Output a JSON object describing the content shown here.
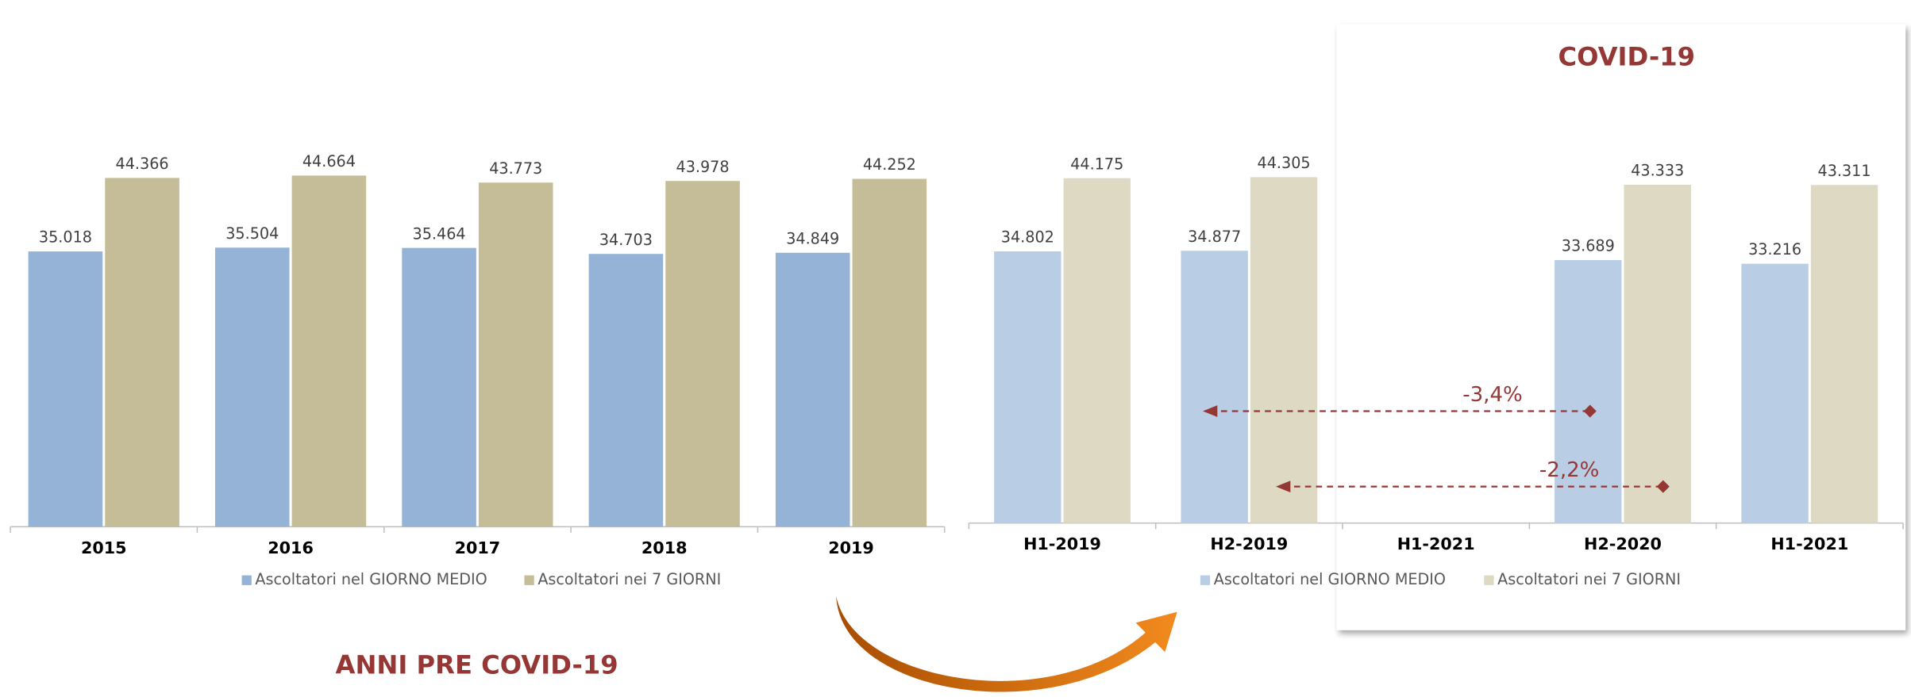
{
  "chart_data": [
    {
      "type": "bar",
      "title": "ANNI PRE COVID-19",
      "categories": [
        "2015",
        "2016",
        "2017",
        "2018",
        "2019"
      ],
      "series": [
        {
          "name": "Ascoltatori nel GIORNO MEDIO",
          "color": "#95b3d7",
          "values": [
            35.018,
            35.504,
            35.464,
            34.703,
            34.849
          ]
        },
        {
          "name": "Ascoltatori nei 7 GIORNI",
          "color": "#c4bd97",
          "values": [
            44.366,
            44.664,
            43.773,
            43.978,
            44.252
          ]
        }
      ],
      "ylim": [
        0,
        67
      ]
    },
    {
      "type": "bar",
      "title": "COVID-19",
      "categories": [
        "H1-2019",
        "H2-2019",
        "H1-2021",
        "H2-2020",
        "H1-2021"
      ],
      "series": [
        {
          "name": "Ascoltatori nel GIORNO MEDIO",
          "color": "#b9cde5",
          "values": [
            34.802,
            34.877,
            null,
            33.689,
            33.216
          ]
        },
        {
          "name": "Ascoltatori nei 7 GIORNI",
          "color": "#ddd9c3",
          "values": [
            44.175,
            44.305,
            null,
            43.333,
            43.311
          ]
        }
      ],
      "ylim": [
        0,
        67
      ],
      "annotations": [
        "-3,4%",
        "-2,2%"
      ]
    }
  ]
}
